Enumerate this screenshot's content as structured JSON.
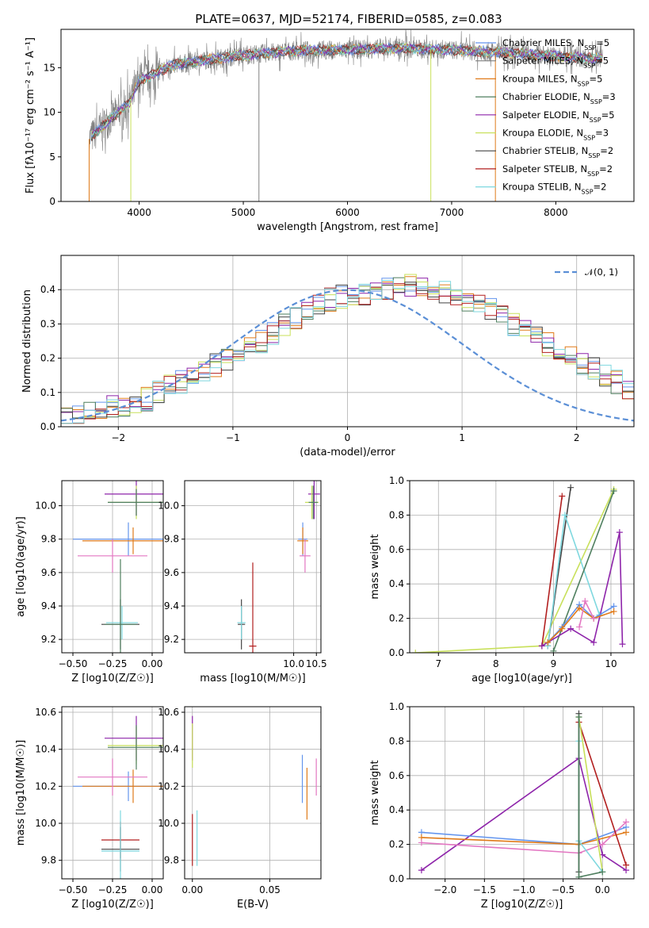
{
  "figure_title": "PLATE=0637, MJD=52174, FIBERID=0585, z=0.083",
  "colors": {
    "chabrier_miles": "#6495ED",
    "salpeter_miles": "#808080",
    "kroupa_miles": "#E07B1A",
    "chabrier_elodie": "#4F7F5F",
    "salpeter_elodie": "#8E24AA",
    "kroupa_elodie": "#C8E05A",
    "chabrier_stelib": "#444444",
    "salpeter_stelib": "#B21F1F",
    "kroupa_stelib": "#7FD8DF",
    "pink": "#E377C2",
    "grid": "#B0B0B0",
    "normal_curve": "#5B8FD6"
  },
  "legend": [
    {
      "label": "Chabrier MILES, N",
      "sub": "SSP",
      "tail": "=5",
      "color_key": "chabrier_miles"
    },
    {
      "label": "Salpeter MILES, N",
      "sub": "SSP",
      "tail": "=5",
      "color_key": "salpeter_miles"
    },
    {
      "label": "Kroupa MILES, N",
      "sub": "SSP",
      "tail": "=5",
      "color_key": "kroupa_miles"
    },
    {
      "label": "Chabrier ELODIE, N",
      "sub": "SSP",
      "tail": "=3",
      "color_key": "chabrier_elodie"
    },
    {
      "label": "Salpeter ELODIE, N",
      "sub": "SSP",
      "tail": "=5",
      "color_key": "salpeter_elodie"
    },
    {
      "label": "Kroupa ELODIE, N",
      "sub": "SSP",
      "tail": "=3",
      "color_key": "kroupa_elodie"
    },
    {
      "label": "Chabrier STELIB, N",
      "sub": "SSP",
      "tail": "=2",
      "color_key": "chabrier_stelib"
    },
    {
      "label": "Salpeter STELIB, N",
      "sub": "SSP",
      "tail": "=2",
      "color_key": "salpeter_stelib"
    },
    {
      "label": "Kroupa STELIB, N",
      "sub": "SSP",
      "tail": "=2",
      "color_key": "kroupa_stelib"
    }
  ],
  "chart_data": [
    {
      "id": "spectrum",
      "type": "line",
      "xlabel": "wavelength [Angstrom, rest frame]",
      "ylabel": "Flux [fλ10⁻¹⁷ erg cm⁻² s⁻¹ A⁻¹]",
      "xlim": [
        3250,
        8750
      ],
      "ylim": [
        0,
        19.3
      ],
      "xticks": [
        4000,
        5000,
        6000,
        7000,
        8000
      ],
      "yticks": [
        0,
        5,
        10,
        15
      ],
      "continuum": {
        "x": [
          3520,
          3700,
          3900,
          4000,
          4300,
          4600,
          5000,
          5500,
          6000,
          6500,
          7000,
          7500,
          8000,
          8450
        ],
        "y": [
          7,
          9,
          11,
          13.5,
          15.2,
          15.8,
          16.4,
          16.9,
          17.0,
          17.2,
          17.0,
          16.7,
          16.3,
          16.0
        ]
      },
      "spikes": [
        {
          "x": 3520,
          "y_low": 0
        },
        {
          "x": 3920,
          "y_low": 0
        },
        {
          "x": 5150,
          "y_low": 0
        },
        {
          "x": 6800,
          "y_low": 0
        },
        {
          "x": 7420,
          "y_low": 0
        }
      ]
    },
    {
      "id": "residuals",
      "type": "step",
      "xlabel": "(data-model)/error",
      "ylabel": "Normed distribution",
      "xlim": [
        -2.5,
        2.5
      ],
      "ylim": [
        0,
        0.5
      ],
      "xticks": [
        -2,
        -1,
        0,
        1,
        2
      ],
      "yticks": [
        0.0,
        0.1,
        0.2,
        0.3,
        0.4
      ],
      "legend_label": "𝒩(0, 1)",
      "bin_width": 0.1,
      "series_base": [
        0.02,
        0.03,
        0.04,
        0.05,
        0.06,
        0.06,
        0.07,
        0.08,
        0.1,
        0.12,
        0.13,
        0.15,
        0.16,
        0.18,
        0.2,
        0.21,
        0.23,
        0.25,
        0.27,
        0.3,
        0.32,
        0.33,
        0.35,
        0.37,
        0.38,
        0.38,
        0.39,
        0.4,
        0.4,
        0.41,
        0.41,
        0.4,
        0.4,
        0.39,
        0.38,
        0.37,
        0.36,
        0.34,
        0.32,
        0.3,
        0.28,
        0.26,
        0.24,
        0.22,
        0.2,
        0.18,
        0.17,
        0.15,
        0.13,
        0.11,
        0.1
      ]
    },
    {
      "id": "age_vs_Z",
      "type": "errorbar",
      "xlabel": "Z [log10(Z/Z☉)]",
      "ylabel": "age  [log10(age/yr)]",
      "xlim": [
        -0.57,
        0.07
      ],
      "ylim": [
        9.12,
        10.15
      ],
      "xticks": [
        -0.5,
        -0.25,
        0.0
      ],
      "yticks": [
        9.2,
        9.4,
        9.6,
        9.8,
        10.0
      ],
      "points": [
        {
          "c": "chabrier_miles",
          "x": -0.15,
          "xerr": 0.35,
          "y": 9.8,
          "yerr": 0.1
        },
        {
          "c": "kroupa_miles",
          "x": -0.12,
          "xerr": 0.32,
          "y": 9.79,
          "yerr": 0.08
        },
        {
          "c": "salpeter_elodie",
          "x": -0.1,
          "xerr": 0.2,
          "y": 10.07,
          "yerr": 0.13
        },
        {
          "c": "kroupa_elodie",
          "x": -0.1,
          "xerr": 0.18,
          "y": 10.02,
          "yerr": 0.1
        },
        {
          "c": "chabrier_elodie",
          "x": -0.1,
          "xerr": 0.18,
          "y": 10.02,
          "yerr": 0.08
        },
        {
          "c": "pink",
          "x": -0.25,
          "xerr": 0.22,
          "y": 9.7,
          "yerr": 0.1
        },
        {
          "c": "chabrier_stelib",
          "x": -0.2,
          "xerr": 0.12,
          "y": 9.29,
          "yerr": 0.15
        },
        {
          "c": "kroupa_stelib",
          "x": -0.19,
          "xerr": 0.1,
          "y": 9.3,
          "yerr": 0.1
        },
        {
          "c": "chabrier_elodie",
          "x": -0.2,
          "xerr": 0.1,
          "y": 9.29,
          "yerr": 0.39
        }
      ]
    },
    {
      "id": "age_vs_mass",
      "type": "errorbar",
      "xlabel": "mass [log10(M/M☉)]",
      "ylabel": "",
      "xlim": [
        7.6,
        10.6
      ],
      "ylim": [
        9.12,
        10.15
      ],
      "xticks": [
        10.0,
        10.5
      ],
      "yticks": [
        9.2,
        9.4,
        9.6,
        9.8,
        10.0
      ],
      "points": [
        {
          "c": "chabrier_miles",
          "x": 10.2,
          "xerr": 0.1,
          "y": 9.8,
          "yerr": 0.1
        },
        {
          "c": "kroupa_miles",
          "x": 10.2,
          "xerr": 0.12,
          "y": 9.79,
          "yerr": 0.08
        },
        {
          "c": "salpeter_elodie",
          "x": 10.45,
          "xerr": 0.13,
          "y": 10.07,
          "yerr": 0.15
        },
        {
          "c": "kroupa_elodie",
          "x": 10.4,
          "xerr": 0.15,
          "y": 10.02,
          "yerr": 0.1
        },
        {
          "c": "chabrier_elodie",
          "x": 10.43,
          "xerr": 0.1,
          "y": 10.02,
          "yerr": 0.1
        },
        {
          "c": "pink",
          "x": 10.25,
          "xerr": 0.12,
          "y": 9.7,
          "yerr": 0.1
        },
        {
          "c": "chabrier_stelib",
          "x": 8.85,
          "xerr": 0.08,
          "y": 9.29,
          "yerr": 0.15
        },
        {
          "c": "kroupa_stelib",
          "x": 8.85,
          "xerr": 0.09,
          "y": 9.3,
          "yerr": 0.1
        },
        {
          "c": "salpeter_stelib",
          "x": 9.1,
          "xerr": 0.08,
          "y": 9.16,
          "yerr": 0.5
        }
      ]
    },
    {
      "id": "weight_vs_age",
      "type": "line",
      "xlabel": "age  [log10(age/yr)]",
      "ylabel": "mass weight",
      "xlim": [
        6.5,
        10.4
      ],
      "ylim": [
        0,
        1
      ],
      "xticks": [
        7,
        8,
        9,
        10
      ],
      "yticks": [
        0.0,
        0.2,
        0.4,
        0.6,
        0.8,
        1.0
      ],
      "series": [
        {
          "c": "kroupa_elodie",
          "x": [
            6.6,
            8.8,
            10.05
          ],
          "y": [
            0.0,
            0.04,
            0.95
          ]
        },
        {
          "c": "salpeter_stelib",
          "x": [
            8.8,
            9.15
          ],
          "y": [
            0.04,
            0.91
          ]
        },
        {
          "c": "chabrier_stelib",
          "x": [
            8.9,
            9.3
          ],
          "y": [
            0.04,
            0.96
          ]
        },
        {
          "c": "kroupa_stelib",
          "x": [
            8.9,
            9.2,
            9.8
          ],
          "y": [
            0.04,
            0.8,
            0.22
          ]
        },
        {
          "c": "chabrier_elodie",
          "x": [
            9.0,
            10.05
          ],
          "y": [
            0.01,
            0.94
          ]
        },
        {
          "c": "salpeter_elodie",
          "x": [
            8.8,
            9.3,
            9.7,
            10.15,
            10.2
          ],
          "y": [
            0.04,
            0.14,
            0.06,
            0.7,
            0.05
          ]
        },
        {
          "c": "chabrier_miles",
          "x": [
            8.9,
            9.15,
            9.45,
            9.7,
            10.05
          ],
          "y": [
            0.06,
            0.15,
            0.28,
            0.2,
            0.27
          ]
        },
        {
          "c": "kroupa_miles",
          "x": [
            8.9,
            9.15,
            9.45,
            9.7,
            10.05
          ],
          "y": [
            0.06,
            0.14,
            0.26,
            0.2,
            0.24
          ]
        },
        {
          "c": "pink",
          "x": [
            9.45,
            9.55,
            9.7
          ],
          "y": [
            0.15,
            0.3,
            0.2
          ]
        }
      ]
    },
    {
      "id": "mass_vs_Z",
      "type": "errorbar",
      "xlabel": "Z [log10(Z/Z☉)]",
      "ylabel": "mass [log10(M/M☉)]",
      "xlim": [
        -0.57,
        0.07
      ],
      "ylim": [
        9.7,
        10.63
      ],
      "xticks": [
        -0.5,
        -0.25,
        0.0
      ],
      "yticks": [
        9.8,
        10.0,
        10.2,
        10.4,
        10.6
      ],
      "points": [
        {
          "c": "chabrier_miles",
          "x": -0.15,
          "xerr": 0.35,
          "y": 10.2,
          "yerr": 0.08
        },
        {
          "c": "kroupa_miles",
          "x": -0.12,
          "xerr": 0.32,
          "y": 10.2,
          "yerr": 0.09
        },
        {
          "c": "salpeter_elodie",
          "x": -0.1,
          "xerr": 0.2,
          "y": 10.46,
          "yerr": 0.12
        },
        {
          "c": "kroupa_elodie",
          "x": -0.1,
          "xerr": 0.18,
          "y": 10.42,
          "yerr": 0.1
        },
        {
          "c": "chabrier_elodie",
          "x": -0.1,
          "xerr": 0.18,
          "y": 10.41,
          "yerr": 0.12
        },
        {
          "c": "pink",
          "x": -0.25,
          "xerr": 0.22,
          "y": 10.25,
          "yerr": 0.1
        },
        {
          "c": "salpeter_stelib",
          "x": -0.2,
          "xerr": 0.12,
          "y": 9.91,
          "yerr": 0.1
        },
        {
          "c": "chabrier_stelib",
          "x": -0.2,
          "xerr": 0.12,
          "y": 9.86,
          "yerr": 0.12
        },
        {
          "c": "kroupa_stelib",
          "x": -0.2,
          "xerr": 0.12,
          "y": 9.85,
          "yerr": 0.22
        }
      ]
    },
    {
      "id": "mass_vs_ebv",
      "type": "errorbar",
      "xlabel": "E(B-V)",
      "ylabel": "",
      "xlim": [
        -0.005,
        0.083
      ],
      "ylim": [
        9.7,
        10.63
      ],
      "xticks": [
        0.0,
        0.05
      ],
      "yticks": [
        9.8,
        10.0,
        10.2,
        10.4,
        10.6
      ],
      "points": [
        {
          "c": "salpeter_elodie",
          "x": 0.0,
          "xerr": 0,
          "y": 10.46,
          "yerr": 0.12
        },
        {
          "c": "kroupa_elodie",
          "x": 0.0,
          "xerr": 0,
          "y": 10.42,
          "yerr": 0.12
        },
        {
          "c": "salpeter_stelib",
          "x": 0.0,
          "xerr": 0,
          "y": 9.91,
          "yerr": 0.14
        },
        {
          "c": "kroupa_stelib",
          "x": 0.003,
          "xerr": 0,
          "y": 9.92,
          "yerr": 0.15
        },
        {
          "c": "chabrier_miles",
          "x": 0.071,
          "xerr": 0,
          "y": 10.24,
          "yerr": 0.13
        },
        {
          "c": "kroupa_miles",
          "x": 0.074,
          "xerr": 0,
          "y": 10.16,
          "yerr": 0.14
        },
        {
          "c": "pink",
          "x": 0.08,
          "xerr": 0,
          "y": 10.25,
          "yerr": 0.1
        }
      ]
    },
    {
      "id": "weight_vs_Z",
      "type": "line",
      "xlabel": "Z [log10(Z/Z☉)]",
      "ylabel": "mass weight",
      "xlim": [
        -2.45,
        0.4
      ],
      "ylim": [
        0,
        1
      ],
      "xticks": [
        -2.0,
        -1.5,
        -1.0,
        -0.5,
        0.0
      ],
      "yticks": [
        0.0,
        0.2,
        0.4,
        0.6,
        0.8,
        1.0
      ],
      "series": [
        {
          "c": "salpeter_elodie",
          "x": [
            -2.3,
            -0.3,
            0.0,
            0.3
          ],
          "y": [
            0.05,
            0.7,
            0.14,
            0.05
          ]
        },
        {
          "c": "chabrier_miles",
          "x": [
            -2.3,
            -0.3,
            0.3
          ],
          "y": [
            0.27,
            0.2,
            0.3
          ]
        },
        {
          "c": "kroupa_miles",
          "x": [
            -2.3,
            -0.3,
            0.3
          ],
          "y": [
            0.24,
            0.2,
            0.27
          ]
        },
        {
          "c": "pink",
          "x": [
            -2.3,
            -0.3,
            0.0,
            0.3
          ],
          "y": [
            0.21,
            0.15,
            0.2,
            0.33
          ]
        },
        {
          "c": "salpeter_stelib",
          "x": [
            -0.3,
            0.3
          ],
          "y": [
            0.91,
            0.08
          ]
        },
        {
          "c": "kroupa_elodie",
          "x": [
            -0.3,
            0.0
          ],
          "y": [
            0.94,
            0.04
          ]
        },
        {
          "c": "kroupa_stelib",
          "x": [
            -0.3,
            -0.3,
            0.0
          ],
          "y": [
            0.8,
            0.22,
            0.04
          ]
        },
        {
          "c": "chabrier_stelib",
          "x": [
            -0.3,
            -0.3
          ],
          "y": [
            0.96,
            0.04
          ]
        },
        {
          "c": "chabrier_elodie",
          "x": [
            -0.3,
            -0.3,
            0.0
          ],
          "y": [
            0.94,
            0.01,
            0.04
          ]
        }
      ]
    }
  ]
}
